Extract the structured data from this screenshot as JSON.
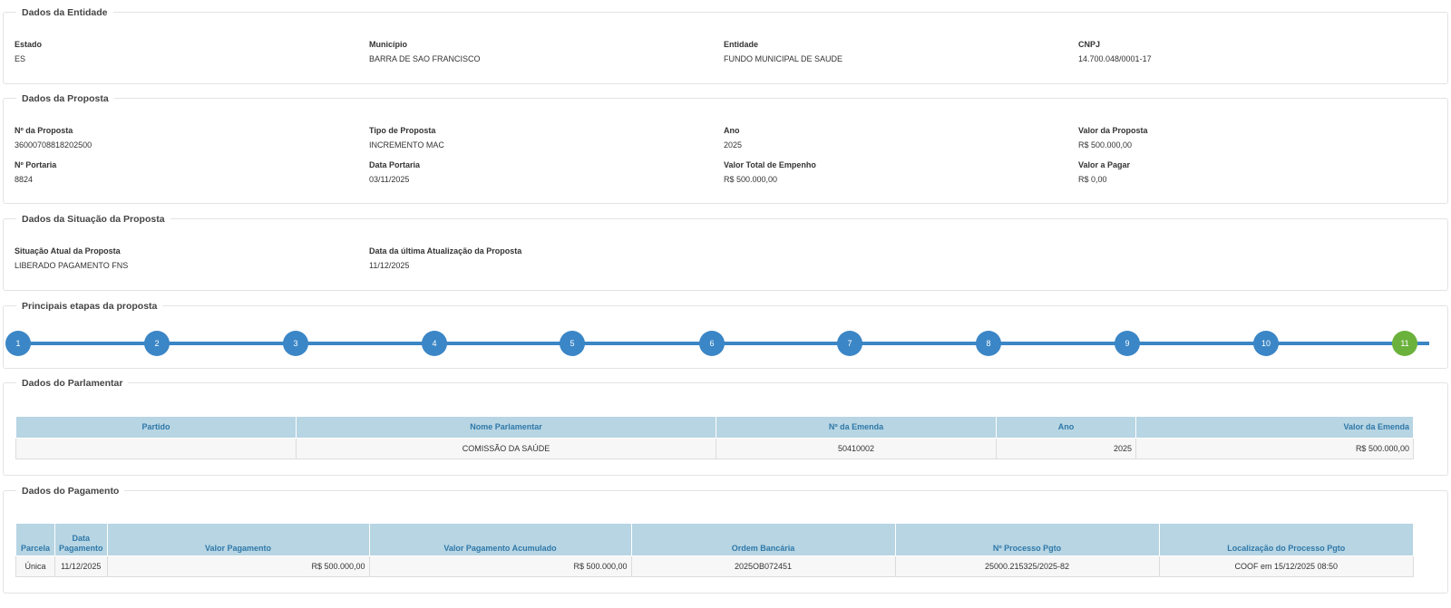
{
  "entidade": {
    "legend": "Dados da Entidade",
    "fields": [
      {
        "label": "Estado",
        "value": "ES"
      },
      {
        "label": "Município",
        "value": "BARRA DE SAO FRANCISCO"
      },
      {
        "label": "Entidade",
        "value": "FUNDO MUNICIPAL DE SAUDE"
      },
      {
        "label": "CNPJ",
        "value": "14.700.048/0001-17"
      }
    ]
  },
  "proposta": {
    "legend": "Dados da Proposta",
    "fields": [
      {
        "label": "Nº da Proposta",
        "value": "36000708818202500"
      },
      {
        "label": "Tipo de Proposta",
        "value": "INCREMENTO MAC"
      },
      {
        "label": "Ano",
        "value": "2025"
      },
      {
        "label": "Valor da Proposta",
        "value": "R$ 500.000,00"
      },
      {
        "label": "Nº Portaria",
        "value": "8824"
      },
      {
        "label": "Data Portaria",
        "value": "03/11/2025"
      },
      {
        "label": "Valor Total de Empenho",
        "value": "R$ 500.000,00"
      },
      {
        "label": "Valor a Pagar",
        "value": "R$ 0,00"
      }
    ]
  },
  "situacao": {
    "legend": "Dados da Situação da Proposta",
    "fields": [
      {
        "label": "Situação Atual da Proposta",
        "value": "LIBERADO PAGAMENTO FNS"
      },
      {
        "label": "Data da última Atualização da Proposta",
        "value": "11/12/2025"
      }
    ]
  },
  "etapas": {
    "legend": "Principais etapas da proposta",
    "steps": [
      "1",
      "2",
      "3",
      "4",
      "5",
      "6",
      "7",
      "8",
      "9",
      "10",
      "11"
    ],
    "colors": {
      "step": "#3b86c6",
      "current": "#6bb23c"
    }
  },
  "parlamentar": {
    "legend": "Dados do Parlamentar",
    "headers": [
      "Partido",
      "Nome Parlamentar",
      "Nº da Emenda",
      "Ano",
      "Valor da Emenda"
    ],
    "row": [
      "",
      "COMISSÃO DA SAÚDE",
      "50410002",
      "2025",
      "R$ 500.000,00"
    ]
  },
  "pagamento": {
    "legend": "Dados do Pagamento",
    "headers": [
      "Parcela",
      "Data Pagamento",
      "Valor Pagamento",
      "Valor Pagamento Acumulado",
      "Ordem Bancária",
      "Nº Processo Pgto",
      "Localização do Processo Pgto"
    ],
    "row": [
      "Única",
      "11/12/2025",
      "R$ 500.000,00",
      "R$ 500.000,00",
      "2025OB072451",
      "25000.215325/2025-82",
      "COOF em 15/12/2025 08:50"
    ]
  }
}
